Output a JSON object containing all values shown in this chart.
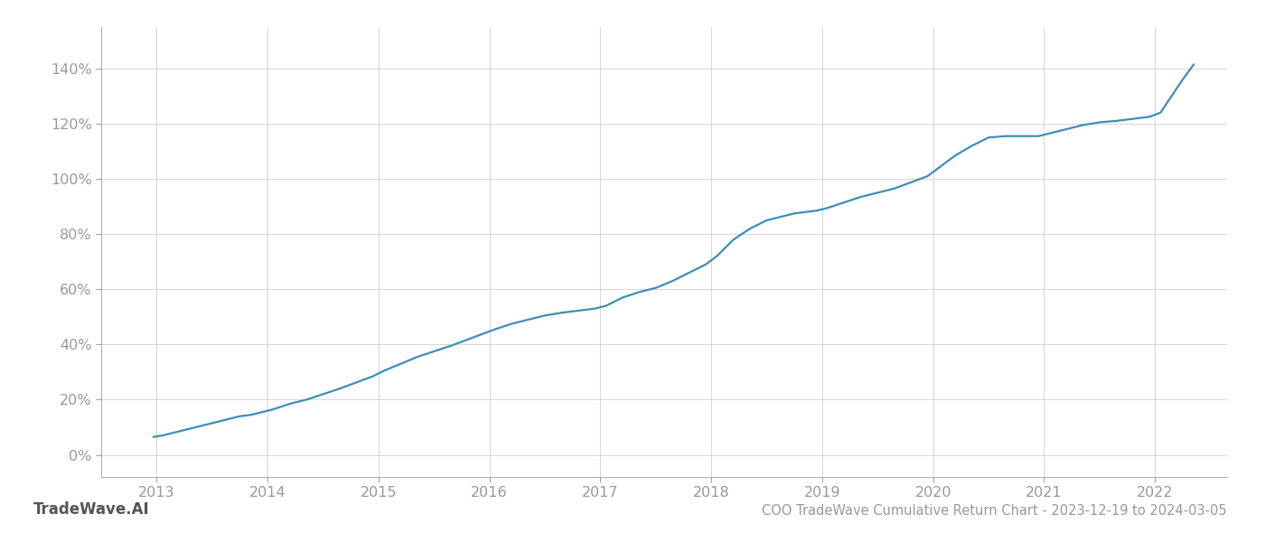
{
  "title": "COO TradeWave Cumulative Return Chart - 2023-12-19 to 2024-03-05",
  "watermark": "TradeWave.AI",
  "line_color": "#3d8eb9",
  "background_color": "#ffffff",
  "grid_color": "#d0d0d0",
  "spine_color": "#aaaaaa",
  "tick_color": "#999999",
  "x_years": [
    2013,
    2014,
    2015,
    2016,
    2017,
    2018,
    2019,
    2020,
    2021,
    2022
  ],
  "y_ticks": [
    0,
    20,
    40,
    60,
    80,
    100,
    120,
    140
  ],
  "ylim": [
    -8,
    155
  ],
  "xlim": [
    2012.5,
    2022.65
  ],
  "data_x": [
    2012.97,
    2013.05,
    2013.15,
    2013.25,
    2013.35,
    2013.5,
    2013.65,
    2013.75,
    2013.85,
    2013.95,
    2014.05,
    2014.2,
    2014.35,
    2014.5,
    2014.65,
    2014.75,
    2014.85,
    2014.95,
    2015.05,
    2015.2,
    2015.35,
    2015.5,
    2015.65,
    2015.75,
    2015.85,
    2015.95,
    2016.05,
    2016.2,
    2016.35,
    2016.5,
    2016.65,
    2016.75,
    2016.85,
    2016.95,
    2017.05,
    2017.2,
    2017.35,
    2017.5,
    2017.65,
    2017.75,
    2017.85,
    2017.95,
    2018.05,
    2018.2,
    2018.35,
    2018.5,
    2018.65,
    2018.75,
    2018.85,
    2018.95,
    2019.05,
    2019.2,
    2019.35,
    2019.5,
    2019.65,
    2019.75,
    2019.85,
    2019.95,
    2020.05,
    2020.2,
    2020.35,
    2020.5,
    2020.65,
    2020.75,
    2020.85,
    2020.95,
    2021.05,
    2021.2,
    2021.35,
    2021.5,
    2021.65,
    2021.75,
    2021.85,
    2021.95,
    2022.05,
    2022.15,
    2022.25,
    2022.35
  ],
  "data_y": [
    6.5,
    7.0,
    8.0,
    9.0,
    10.0,
    11.5,
    13.0,
    14.0,
    14.5,
    15.5,
    16.5,
    18.5,
    20.0,
    22.0,
    24.0,
    25.5,
    27.0,
    28.5,
    30.5,
    33.0,
    35.5,
    37.5,
    39.5,
    41.0,
    42.5,
    44.0,
    45.5,
    47.5,
    49.0,
    50.5,
    51.5,
    52.0,
    52.5,
    53.0,
    54.0,
    57.0,
    59.0,
    60.5,
    63.0,
    65.0,
    67.0,
    69.0,
    72.0,
    78.0,
    82.0,
    85.0,
    86.5,
    87.5,
    88.0,
    88.5,
    89.5,
    91.5,
    93.5,
    95.0,
    96.5,
    98.0,
    99.5,
    101.0,
    104.0,
    108.5,
    112.0,
    115.0,
    115.5,
    115.5,
    115.5,
    115.5,
    116.5,
    118.0,
    119.5,
    120.5,
    121.0,
    121.5,
    122.0,
    122.5,
    124.0,
    130.0,
    136.0,
    141.5
  ],
  "title_fontsize": 10.5,
  "tick_fontsize": 11.5,
  "watermark_fontsize": 12,
  "line_width": 1.6
}
